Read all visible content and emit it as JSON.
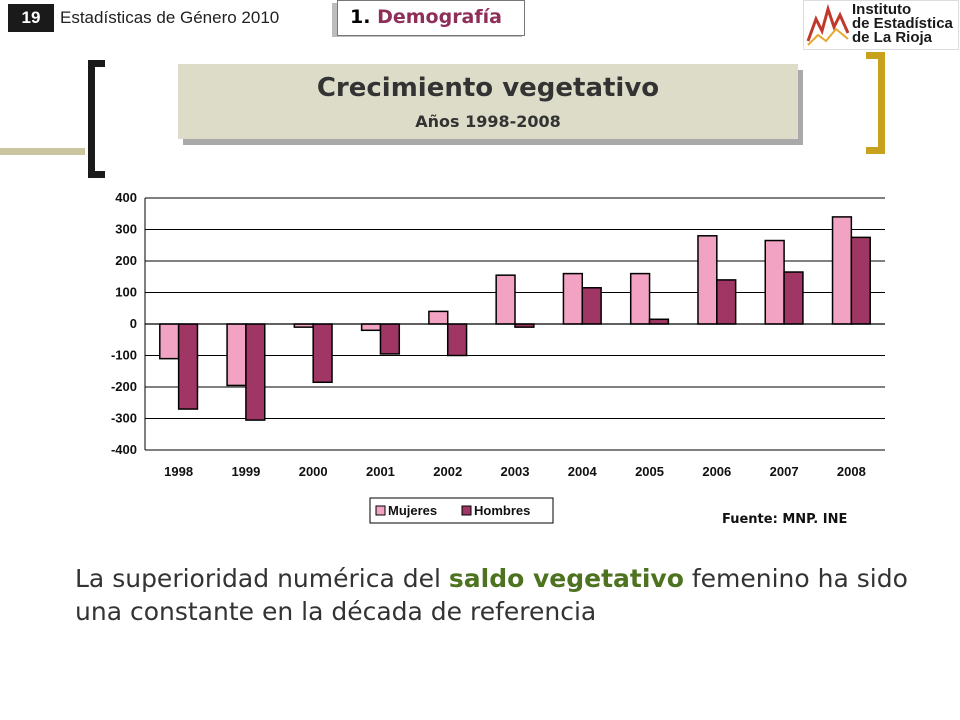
{
  "header": {
    "page_number": "19",
    "title": "Estadísticas de Género 2010",
    "section_number": "1.",
    "section_name": "Demografía"
  },
  "logo": {
    "line1": "Instituto",
    "line2": "de Estadística",
    "line3": "de La Rioja"
  },
  "body": {
    "text_before": "La superioridad numérica del ",
    "highlight": "saldo vegetativo",
    "text_after": " femenino ha sido una constante en la década de referencia"
  },
  "colors": {
    "mujeres": "#f2a3c4",
    "hombres": "#a03663",
    "olive": "#c9c5a0",
    "gold_bracket": "#c9a21d",
    "highlight": "#4e7320"
  },
  "chart_data": {
    "type": "bar",
    "title": "Crecimiento vegetativo",
    "subtitle": "Años 1998-2008",
    "categories": [
      "1998",
      "1999",
      "2000",
      "2001",
      "2002",
      "2003",
      "2004",
      "2005",
      "2006",
      "2007",
      "2008"
    ],
    "series": [
      {
        "name": "Mujeres",
        "values": [
          -110,
          -195,
          -10,
          -20,
          40,
          155,
          160,
          160,
          280,
          265,
          340
        ]
      },
      {
        "name": "Hombres",
        "values": [
          -270,
          -305,
          -185,
          -95,
          -100,
          -10,
          115,
          15,
          140,
          165,
          275
        ]
      }
    ],
    "ylim": [
      -400,
      400
    ],
    "yticks": [
      400,
      300,
      200,
      100,
      0,
      -100,
      -200,
      -300,
      -400
    ],
    "grid": true,
    "legend_position": "bottom",
    "source": "Fuente: MNP. INE"
  }
}
